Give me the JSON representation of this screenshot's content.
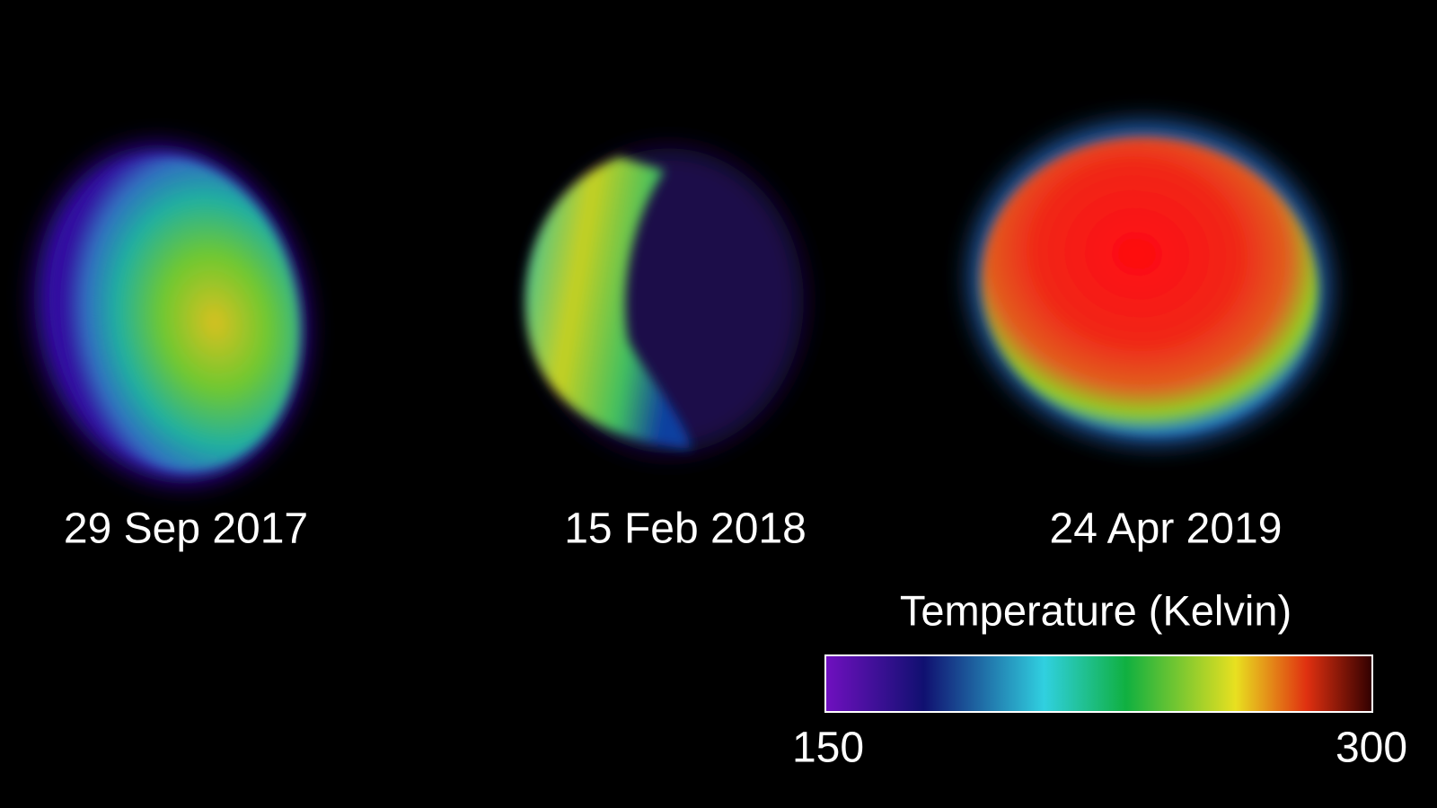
{
  "panels": [
    {
      "date": "29 Sep 2017"
    },
    {
      "date": "15 Feb 2018"
    },
    {
      "date": "24 Apr 2019"
    }
  ],
  "colorbar": {
    "title": "Temperature (Kelvin)",
    "min": 150,
    "max": 300
  }
}
